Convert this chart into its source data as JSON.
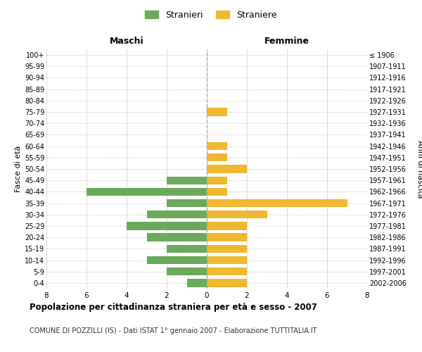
{
  "age_groups": [
    "100+",
    "95-99",
    "90-94",
    "85-89",
    "80-84",
    "75-79",
    "70-74",
    "65-69",
    "60-64",
    "55-59",
    "50-54",
    "45-49",
    "40-44",
    "35-39",
    "30-34",
    "25-29",
    "20-24",
    "15-19",
    "10-14",
    "5-9",
    "0-4"
  ],
  "birth_years": [
    "≤ 1906",
    "1907-1911",
    "1912-1916",
    "1917-1921",
    "1922-1926",
    "1927-1931",
    "1932-1936",
    "1937-1941",
    "1942-1946",
    "1947-1951",
    "1952-1956",
    "1957-1961",
    "1962-1966",
    "1967-1971",
    "1972-1976",
    "1977-1981",
    "1982-1986",
    "1987-1991",
    "1992-1996",
    "1997-2001",
    "2002-2006"
  ],
  "maschi": [
    0,
    0,
    0,
    0,
    0,
    0,
    0,
    0,
    0,
    0,
    0,
    2,
    6,
    2,
    3,
    4,
    3,
    2,
    3,
    2,
    1
  ],
  "femmine": [
    0,
    0,
    0,
    0,
    0,
    1,
    0,
    0,
    1,
    1,
    2,
    1,
    1,
    7,
    3,
    2,
    2,
    2,
    2,
    2,
    2
  ],
  "maschi_color": "#6aaa5a",
  "femmine_color": "#f0b830",
  "title": "Popolazione per cittadinanza straniera per età e sesso - 2007",
  "subtitle": "COMUNE DI POZZILLI (IS) - Dati ISTAT 1° gennaio 2007 - Elaborazione TUTTITALIA.IT",
  "legend_maschi": "Stranieri",
  "legend_femmine": "Straniere",
  "xlabel_left": "Maschi",
  "xlabel_right": "Femmine",
  "ylabel_left": "Fasce di età",
  "ylabel_right": "Anni di nascita",
  "xlim": 8,
  "background_color": "#ffffff",
  "grid_color": "#cccccc"
}
